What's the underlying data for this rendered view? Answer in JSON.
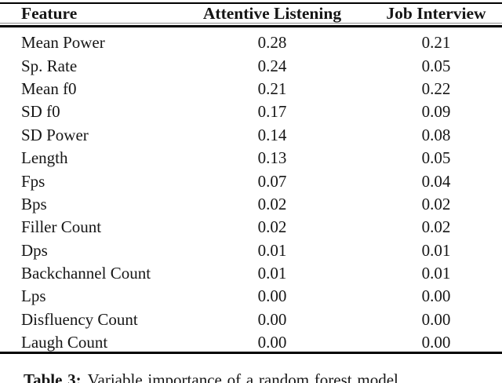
{
  "table": {
    "columns": [
      "Feature",
      "Attentive Listening",
      "Job Interview"
    ],
    "rows": [
      [
        "Mean Power",
        "0.28",
        "0.21"
      ],
      [
        "Sp. Rate",
        "0.24",
        "0.05"
      ],
      [
        "Mean f0",
        "0.21",
        "0.22"
      ],
      [
        "SD f0",
        "0.17",
        "0.09"
      ],
      [
        "SD Power",
        "0.14",
        "0.08"
      ],
      [
        "Length",
        "0.13",
        "0.05"
      ],
      [
        "Fps",
        "0.07",
        "0.04"
      ],
      [
        "Bps",
        "0.02",
        "0.02"
      ],
      [
        "Filler Count",
        "0.02",
        "0.02"
      ],
      [
        "Dps",
        "0.01",
        "0.01"
      ],
      [
        "Backchannel Count",
        "0.01",
        "0.01"
      ],
      [
        "Lps",
        "0.00",
        "0.00"
      ],
      [
        "Disfluency Count",
        "0.00",
        "0.00"
      ],
      [
        "Laugh Count",
        "0.00",
        "0.00"
      ]
    ]
  },
  "caption": {
    "label": "Table 3:",
    "text": "Variable importance of a random forest model"
  },
  "colors": {
    "background": "#ffffff",
    "text": "#161616",
    "rule": "#000000",
    "rule_light": "#8f8f8f"
  }
}
